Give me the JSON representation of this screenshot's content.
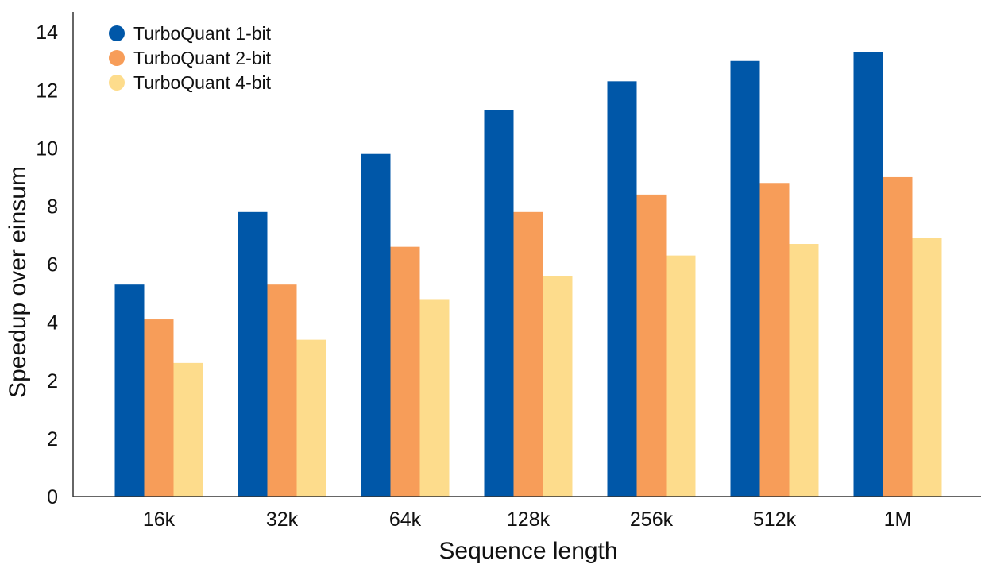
{
  "chart_data": {
    "type": "bar",
    "title": "",
    "xlabel": "Sequence length",
    "ylabel": "Speedup over einsum",
    "categories": [
      "16k",
      "32k",
      "64k",
      "128k",
      "256k",
      "512k",
      "1M"
    ],
    "y_tick_labels": [
      "0",
      "2",
      "2",
      "4",
      "6",
      "8",
      "10",
      "12",
      "14"
    ],
    "ylim": [
      0,
      14.5
    ],
    "grid": false,
    "legend_position": "top-left",
    "series": [
      {
        "name": "TurboQuant 1-bit",
        "color": "#0057A8",
        "values": [
          5.3,
          7.8,
          9.8,
          11.3,
          12.3,
          13.0,
          13.3
        ]
      },
      {
        "name": "TurboQuant 2-bit",
        "color": "#F79D59",
        "values": [
          4.1,
          5.3,
          6.6,
          7.8,
          8.4,
          8.8,
          9.0
        ]
      },
      {
        "name": "TurboQuant 4-bit",
        "color": "#FDDC8C",
        "values": [
          2.6,
          3.4,
          4.8,
          5.6,
          6.3,
          6.7,
          6.9
        ]
      }
    ]
  }
}
